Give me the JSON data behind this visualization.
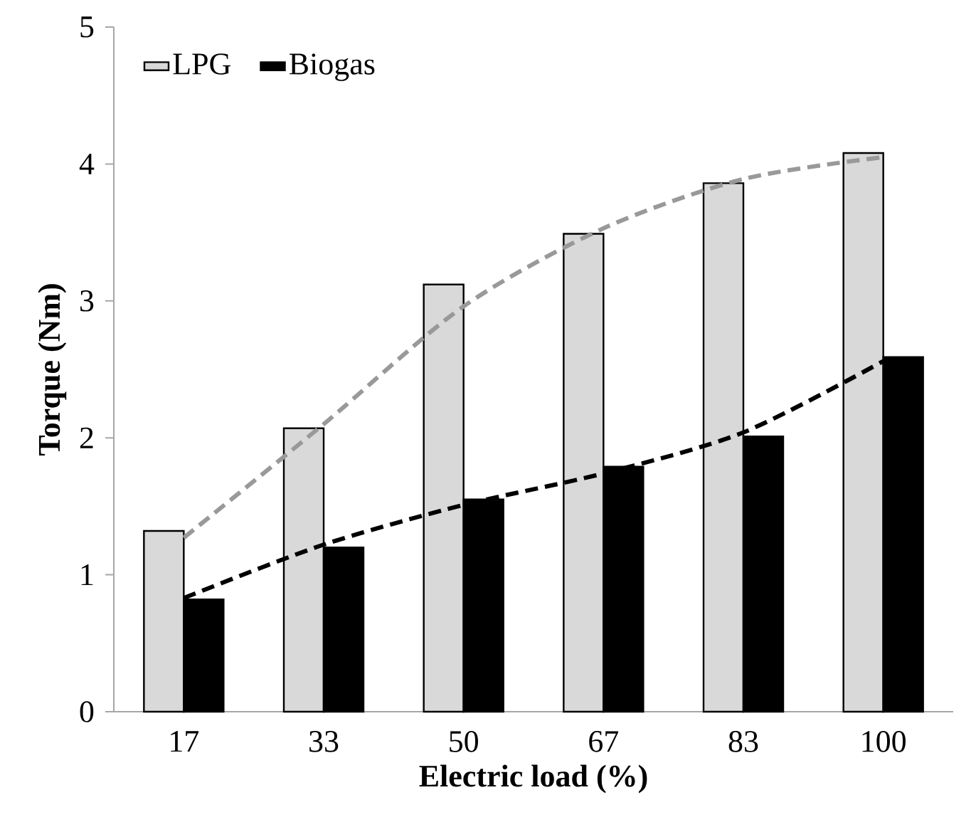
{
  "chart_data": {
    "type": "bar",
    "xlabel": "Electric load (%)",
    "ylabel": "Torque (Nm)",
    "categories": [
      "17",
      "33",
      "50",
      "67",
      "83",
      "100"
    ],
    "ylim": [
      0,
      5
    ],
    "yticks": [
      0,
      1,
      2,
      3,
      4,
      5
    ],
    "legend": "top left",
    "series": [
      {
        "name": "LPG",
        "color": "#d9d9d9",
        "values": [
          1.32,
          2.07,
          3.12,
          3.49,
          3.86,
          4.08
        ]
      },
      {
        "name": "Biogas",
        "color": "#000000",
        "values": [
          0.82,
          1.2,
          1.55,
          1.79,
          2.01,
          2.59
        ]
      },
      {
        "type": "line",
        "color": "#999999",
        "line_style": "dashed",
        "marker": "none",
        "values": [
          1.27,
          2.1,
          2.96,
          3.53,
          3.89,
          4.05
        ]
      },
      {
        "type": "line",
        "color": "#000000",
        "line_style": "dashed",
        "marker": "none",
        "values": [
          0.83,
          1.22,
          1.51,
          1.74,
          2.04,
          2.56
        ]
      }
    ]
  }
}
